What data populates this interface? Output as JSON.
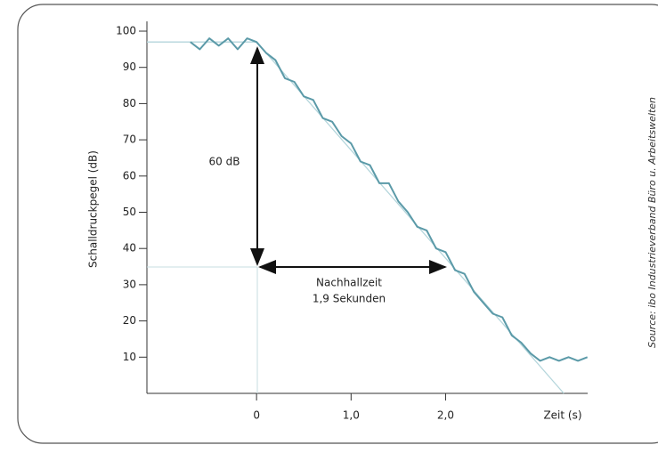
{
  "chart_data": {
    "type": "line",
    "y_label": "Schalldruckpegel (dB)",
    "x_label": "Zeit (s)",
    "annotations": [
      "60 dB",
      "Nachhallzeit",
      "1,9 Sekunden"
    ],
    "source": "Source: ibo Industrieverband Büro u. Arbeitswelten",
    "xlim": [
      -1.16,
      3.55
    ],
    "xticks": [
      0,
      {
        "value": 1,
        "label": "1,0"
      },
      {
        "value": 2,
        "label": "2,0"
      }
    ],
    "ylim": [
      0,
      100
    ],
    "yticks": [
      10,
      20,
      30,
      40,
      50,
      60,
      70,
      80,
      90,
      100
    ],
    "series": [
      {
        "color": "#b5d6dc",
        "x": [
          -1.16,
          0,
          3.25
        ],
        "values": [
          97,
          97,
          0
        ]
      },
      {
        "color": "#5b9aa8",
        "x": [
          -0.7,
          -0.6,
          -0.5,
          -0.4,
          -0.3,
          -0.2,
          -0.1,
          0,
          0.1,
          0.2,
          0.3,
          0.4,
          0.5,
          0.6,
          0.7,
          0.8,
          0.9,
          1.0,
          1.1,
          1.2,
          1.3,
          1.4,
          1.5,
          1.6,
          1.7,
          1.8,
          1.9,
          2.0,
          2.1,
          2.2,
          2.3,
          2.4,
          2.5,
          2.6,
          2.7,
          2.8,
          2.9,
          3.0,
          3.1,
          3.2,
          3.3,
          3.4,
          3.5
        ],
        "values": [
          97,
          95,
          98,
          96,
          98,
          95,
          98,
          97,
          94,
          92,
          87,
          86,
          82,
          81,
          76,
          75,
          71,
          69,
          64,
          63,
          58,
          58,
          53,
          50,
          46,
          45,
          40,
          39,
          34,
          33,
          28,
          25,
          22,
          21,
          16,
          14,
          11,
          9,
          10,
          9,
          10,
          9,
          10
        ]
      }
    ]
  }
}
